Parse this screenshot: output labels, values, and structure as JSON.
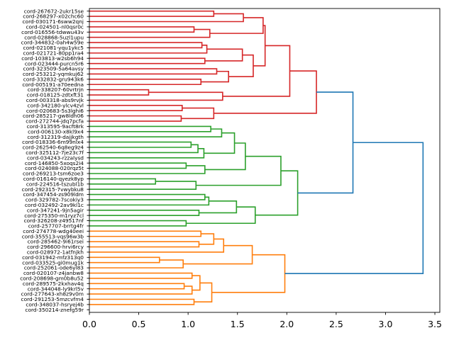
{
  "chart_data": {
    "type": "dendrogram",
    "orientation": "left",
    "title": "",
    "xlabel": "",
    "ylabel": "",
    "xlim": [
      0,
      3.55
    ],
    "xticks": [
      0.0,
      0.5,
      1.0,
      1.5,
      2.0,
      2.5,
      3.0,
      3.5
    ],
    "xtick_labels": [
      "0.0",
      "0.5",
      "1.0",
      "1.5",
      "2.0",
      "2.5",
      "3.0",
      "3.5"
    ],
    "colors": {
      "red": "#d62728",
      "green": "#2ca02c",
      "orange": "#ff7f0e",
      "blue": "#1f77b4"
    },
    "leaves": [
      "cord-267672-2ukr15se",
      "cord-268297-x02chc60",
      "cord-030171-6sww2qnj",
      "cord-024501-nl0qsr0c",
      "cord-016556-tdwwu43v",
      "cord-028868-5uzl1upu",
      "cord-344832-0ah4w59e",
      "cord-021081-yqu1ykc5",
      "cord-021721-80pp1ra4",
      "cord-103813-w2sb6h94",
      "cord-023444-purcn5r6",
      "cord-323509-5a64avsy",
      "cord-253212-yqmkuj62",
      "cord-332832-gru943k6",
      "cord-005191-a70eedna",
      "cord-338207-60vrtrjn",
      "cord-018125-zdtxft31",
      "cord-003318-abs9rvjk",
      "cord-342180-ylcv4zvl",
      "cord-020683-5s3lghi6",
      "cord-285217-gw8ldh06",
      "cord-272744-jdq7pcfa",
      "cord-313595-9acft8rk",
      "cord-006130-x8kl9x4",
      "cord-312319-dajjkgth",
      "cord-018336-6m99nlx4",
      "cord-262540-6q8eg9z4",
      "cord-325112-7je23c7f",
      "cord-034243-rzzalysd",
      "cord-146850-5xoqs2i4",
      "cord-024088-020rqz5t",
      "cord-269213-tsm6zoe3",
      "cord-016140-qyezk8yp",
      "cord-224516-tszubl1b",
      "cord-292315-7vwybku8",
      "cord-347454-zs909ldm",
      "cord-329782-7scokiy3",
      "cord-032492-2av9kl1c",
      "cord-347241-9jn5agir",
      "cord-275350-m1ryz7cl",
      "cord-326208-z49517nf",
      "cord-257707-brrtg4fr",
      "cord-274778-wdg40eei",
      "cord-355513-vqs96w3b",
      "cord-285462-9i61rsei",
      "cord-296600-hrvi6rcy",
      "cord-028972-1atfnjkh",
      "cord-031942-mfz313q0",
      "cord-033525-gi0mug1k",
      "cord-252061-ode6yl83",
      "cord-020107-z4janbw8",
      "cord-208698-gm0b8u52",
      "cord-289575-2kxhav4q",
      "cord-344048-ly9krl5v",
      "cord-277643-xh8z9v0m",
      "cord-291253-5mzcvfm4",
      "cord-348037-hsryej4b",
      "cord-350214-znefg59r"
    ],
    "links": [
      {
        "leaves": [
          0,
          1
        ],
        "height": 1.26,
        "color": "red"
      },
      {
        "leaves": [
          3,
          4
        ],
        "height": 1.06,
        "color": "red"
      },
      {
        "groups": [
          [
            3,
            4
          ],
          [
            5
          ]
        ],
        "height": 1.22,
        "color": "red"
      },
      {
        "groups": [
          [
            0,
            1
          ],
          [
            2
          ]
        ],
        "height": 1.56,
        "color": "red"
      },
      {
        "groups": [
          [
            0,
            1,
            2
          ],
          [
            3,
            4,
            5
          ]
        ],
        "height": 1.76,
        "color": "red"
      },
      {
        "leaves": [
          6,
          7
        ],
        "height": 1.14,
        "color": "red"
      },
      {
        "groups": [
          [
            6,
            7
          ],
          [
            8
          ]
        ],
        "height": 1.19,
        "color": "red"
      },
      {
        "leaves": [
          9,
          10
        ],
        "height": 1.17,
        "color": "red"
      },
      {
        "groups": [
          [
            6,
            7,
            8
          ],
          [
            9,
            10
          ]
        ],
        "height": 1.55,
        "color": "red"
      },
      {
        "leaves": [
          11,
          12
        ],
        "height": 1.29,
        "color": "red"
      },
      {
        "leaves": [
          13,
          14
        ],
        "height": 1.13,
        "color": "red"
      },
      {
        "groups": [
          [
            11,
            12
          ],
          [
            13,
            14
          ]
        ],
        "height": 1.41,
        "color": "red"
      },
      {
        "groups": [
          [
            6,
            7,
            8,
            9,
            10
          ],
          [
            11,
            12,
            13,
            14
          ]
        ],
        "height": 1.66,
        "color": "red"
      },
      {
        "groups": [
          [
            0,
            1,
            2,
            3,
            4,
            5
          ],
          [
            6,
            7,
            8,
            9,
            10,
            11,
            12,
            13,
            14
          ]
        ],
        "height": 1.78,
        "color": "red"
      },
      {
        "leaves": [
          15,
          16
        ],
        "height": 0.6,
        "color": "red"
      },
      {
        "groups": [
          [
            15,
            16
          ],
          [
            17
          ]
        ],
        "height": 1.35,
        "color": "red"
      },
      {
        "groups": [
          [
            0,
            14
          ],
          [
            15,
            17
          ]
        ],
        "height": 2.03,
        "color": "red"
      },
      {
        "leaves": [
          18,
          19
        ],
        "height": 0.94,
        "color": "red"
      },
      {
        "leaves": [
          20,
          21
        ],
        "height": 0.93,
        "color": "red"
      },
      {
        "groups": [
          [
            18,
            19
          ],
          [
            20,
            21
          ]
        ],
        "height": 1.26,
        "color": "red"
      },
      {
        "groups": [
          [
            0,
            17
          ],
          [
            18,
            21
          ]
        ],
        "height": 2.3,
        "color": "red"
      },
      {
        "leaves": [
          22,
          23
        ],
        "height": 1.23,
        "color": "green"
      },
      {
        "groups": [
          [
            22,
            23
          ],
          [
            24
          ]
        ],
        "height": 1.34,
        "color": "green"
      },
      {
        "leaves": [
          25,
          26
        ],
        "height": 1.03,
        "color": "green"
      },
      {
        "groups": [
          [
            25,
            26
          ],
          [
            27
          ]
        ],
        "height": 1.1,
        "color": "green"
      },
      {
        "groups": [
          [
            25,
            27
          ],
          [
            28
          ]
        ],
        "height": 1.16,
        "color": "green"
      },
      {
        "groups": [
          [
            22,
            24
          ],
          [
            25,
            28
          ]
        ],
        "height": 1.47,
        "color": "green"
      },
      {
        "leaves": [
          29,
          30
        ],
        "height": 0.98,
        "color": "green"
      },
      {
        "groups": [
          [
            29,
            30
          ],
          [
            31
          ]
        ],
        "height": 1.17,
        "color": "green"
      },
      {
        "groups": [
          [
            22,
            28
          ],
          [
            29,
            31
          ]
        ],
        "height": 1.58,
        "color": "green"
      },
      {
        "leaves": [
          32,
          33
        ],
        "height": 0.67,
        "color": "green"
      },
      {
        "groups": [
          [
            32,
            33
          ],
          [
            34
          ]
        ],
        "height": 1.08,
        "color": "green"
      },
      {
        "groups": [
          [
            22,
            31
          ],
          [
            32,
            34
          ]
        ],
        "height": 1.94,
        "color": "green"
      },
      {
        "leaves": [
          35,
          36
        ],
        "height": 1.17,
        "color": "green"
      },
      {
        "groups": [
          [
            35,
            36
          ],
          [
            37
          ]
        ],
        "height": 1.21,
        "color": "green"
      },
      {
        "leaves": [
          38,
          39
        ],
        "height": 1.11,
        "color": "green"
      },
      {
        "groups": [
          [
            35,
            37
          ],
          [
            38,
            39
          ]
        ],
        "height": 1.49,
        "color": "green"
      },
      {
        "leaves": [
          40,
          41
        ],
        "height": 0.98,
        "color": "green"
      },
      {
        "groups": [
          [
            35,
            39
          ],
          [
            40,
            41
          ]
        ],
        "height": 1.68,
        "color": "green"
      },
      {
        "groups": [
          [
            22,
            34
          ],
          [
            35,
            41
          ]
        ],
        "height": 2.11,
        "color": "green"
      },
      {
        "leaves": [
          42,
          43
        ],
        "height": 1.13,
        "color": "orange"
      },
      {
        "leaves": [
          44,
          45
        ],
        "height": 1.11,
        "color": "orange"
      },
      {
        "groups": [
          [
            42,
            43
          ],
          [
            44,
            45
          ]
        ],
        "height": 1.26,
        "color": "orange"
      },
      {
        "groups": [
          [
            42,
            45
          ],
          [
            46
          ]
        ],
        "height": 1.36,
        "color": "orange"
      },
      {
        "leaves": [
          47,
          48
        ],
        "height": 0.71,
        "color": "orange"
      },
      {
        "groups": [
          [
            47,
            48
          ],
          [
            49
          ]
        ],
        "height": 0.95,
        "color": "orange"
      },
      {
        "groups": [
          [
            42,
            46
          ],
          [
            47,
            49
          ]
        ],
        "height": 1.65,
        "color": "orange"
      },
      {
        "leaves": [
          50,
          51
        ],
        "height": 1.04,
        "color": "orange"
      },
      {
        "leaves": [
          52,
          53
        ],
        "height": 0.96,
        "color": "orange"
      },
      {
        "groups": [
          [
            52,
            53
          ],
          [
            54
          ]
        ],
        "height": 1.04,
        "color": "orange"
      },
      {
        "groups": [
          [
            50,
            51
          ],
          [
            52,
            54
          ]
        ],
        "height": 1.12,
        "color": "orange"
      },
      {
        "leaves": [
          55,
          56
        ],
        "height": 1.06,
        "color": "orange"
      },
      {
        "groups": [
          [
            50,
            54
          ],
          [
            55,
            56
          ]
        ],
        "height": 1.24,
        "color": "orange"
      },
      {
        "groups": [
          [
            42,
            49
          ],
          [
            50,
            56
          ]
        ],
        "height": 1.98,
        "color": "orange"
      },
      {
        "groups": [
          [
            0,
            21
          ],
          [
            22,
            41
          ]
        ],
        "height": 2.67,
        "color": "blue"
      },
      {
        "groups": [
          [
            0,
            41
          ],
          [
            42,
            56
          ]
        ],
        "height": 3.38,
        "color": "blue"
      }
    ]
  }
}
